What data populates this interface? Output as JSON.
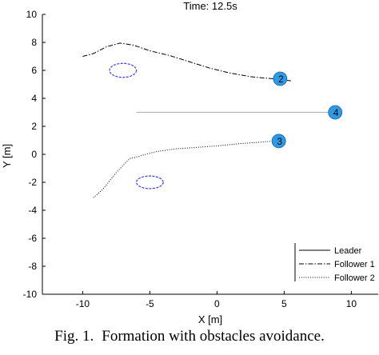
{
  "chart_data": {
    "type": "line",
    "title": "Time: 12.5s",
    "xlabel": "X [m]",
    "ylabel": "Y [m]",
    "xlim": [
      -13,
      12
    ],
    "ylim": [
      -10,
      10
    ],
    "xticks": [
      -10,
      -5,
      0,
      5,
      10
    ],
    "yticks": [
      -10,
      -8,
      -6,
      -4,
      -2,
      0,
      2,
      4,
      6,
      8,
      10
    ],
    "grid": false,
    "legend_position": "bottom-right",
    "series": [
      {
        "name": "Leader",
        "style": "solid",
        "color": "#b4b4b4",
        "x": [
          -6,
          8.8
        ],
        "y": [
          3,
          3
        ]
      },
      {
        "name": "Follower 1",
        "style": "dashdot",
        "color": "#000000",
        "x": [
          -10,
          -9.2,
          -8.2,
          -7.2,
          -6.2,
          -5,
          -3.5,
          -2,
          -0.5,
          1,
          2.5,
          3.5,
          4.2,
          4.8,
          5.5
        ],
        "y": [
          7,
          7.2,
          7.7,
          7.95,
          7.8,
          7.4,
          7.05,
          6.6,
          6.15,
          5.8,
          5.55,
          5.45,
          5.4,
          5.35,
          5.25
        ]
      },
      {
        "name": "Follower 2",
        "style": "dotted",
        "color": "#000000",
        "x": [
          -9.2,
          -8.5,
          -7.5,
          -6.5,
          -5.8,
          -5.5,
          -4.5,
          -3,
          -1.5,
          0,
          1.5,
          3,
          4.2,
          4.7
        ],
        "y": [
          -3.1,
          -2.5,
          -1.3,
          -0.3,
          -0.15,
          -0.05,
          0.2,
          0.4,
          0.5,
          0.6,
          0.75,
          0.85,
          0.95,
          1
        ]
      }
    ],
    "agents": [
      {
        "label": "2",
        "x": 4.7,
        "y": 5.4,
        "color": "#2b9be5"
      },
      {
        "label": "4",
        "x": 8.8,
        "y": 3.0,
        "color": "#2b9be5"
      },
      {
        "label": "3",
        "x": 4.6,
        "y": 0.95,
        "color": "#2b9be5"
      }
    ],
    "obstacles": [
      {
        "cx": -7,
        "cy": 6,
        "rx": 1,
        "ry": 0.5,
        "color": "#3b3bff"
      },
      {
        "cx": -5,
        "cy": -2,
        "rx": 1,
        "ry": 0.45,
        "color": "#3b3bff"
      }
    ]
  },
  "caption": {
    "label": "Fig. 1.",
    "text": "Formation with obstacles avoidance."
  }
}
